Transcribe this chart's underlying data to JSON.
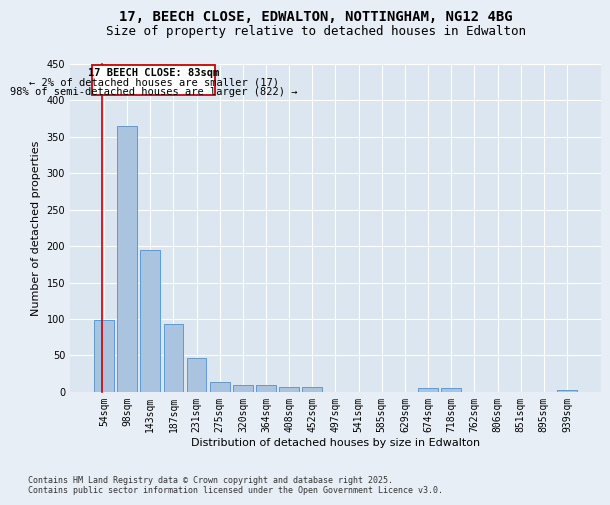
{
  "title_line1": "17, BEECH CLOSE, EDWALTON, NOTTINGHAM, NG12 4BG",
  "title_line2": "Size of property relative to detached houses in Edwalton",
  "xlabel": "Distribution of detached houses by size in Edwalton",
  "ylabel": "Number of detached properties",
  "categories": [
    "54sqm",
    "98sqm",
    "143sqm",
    "187sqm",
    "231sqm",
    "275sqm",
    "320sqm",
    "364sqm",
    "408sqm",
    "452sqm",
    "497sqm",
    "541sqm",
    "585sqm",
    "629sqm",
    "674sqm",
    "718sqm",
    "762sqm",
    "806sqm",
    "851sqm",
    "895sqm",
    "939sqm"
  ],
  "values": [
    98,
    365,
    195,
    93,
    46,
    13,
    10,
    10,
    6,
    6,
    0,
    0,
    0,
    0,
    5,
    5,
    0,
    0,
    0,
    0,
    3
  ],
  "bar_color": "#aac4e0",
  "bar_edge_color": "#5b9bd5",
  "annotation_box_color": "#cc0000",
  "annotation_text_line1": "17 BEECH CLOSE: 83sqm",
  "annotation_text_line2": "← 2% of detached houses are smaller (17)",
  "annotation_text_line3": "98% of semi-detached houses are larger (822) →",
  "ylim": [
    0,
    450
  ],
  "yticks": [
    0,
    50,
    100,
    150,
    200,
    250,
    300,
    350,
    400,
    450
  ],
  "footer_line1": "Contains HM Land Registry data © Crown copyright and database right 2025.",
  "footer_line2": "Contains public sector information licensed under the Open Government Licence v3.0.",
  "background_color": "#e8eef5",
  "plot_background_color": "#dce6f0",
  "grid_color": "#ffffff",
  "title_fontsize": 10,
  "subtitle_fontsize": 9,
  "axis_label_fontsize": 8,
  "tick_fontsize": 7,
  "annotation_fontsize": 7.5,
  "footer_fontsize": 6
}
